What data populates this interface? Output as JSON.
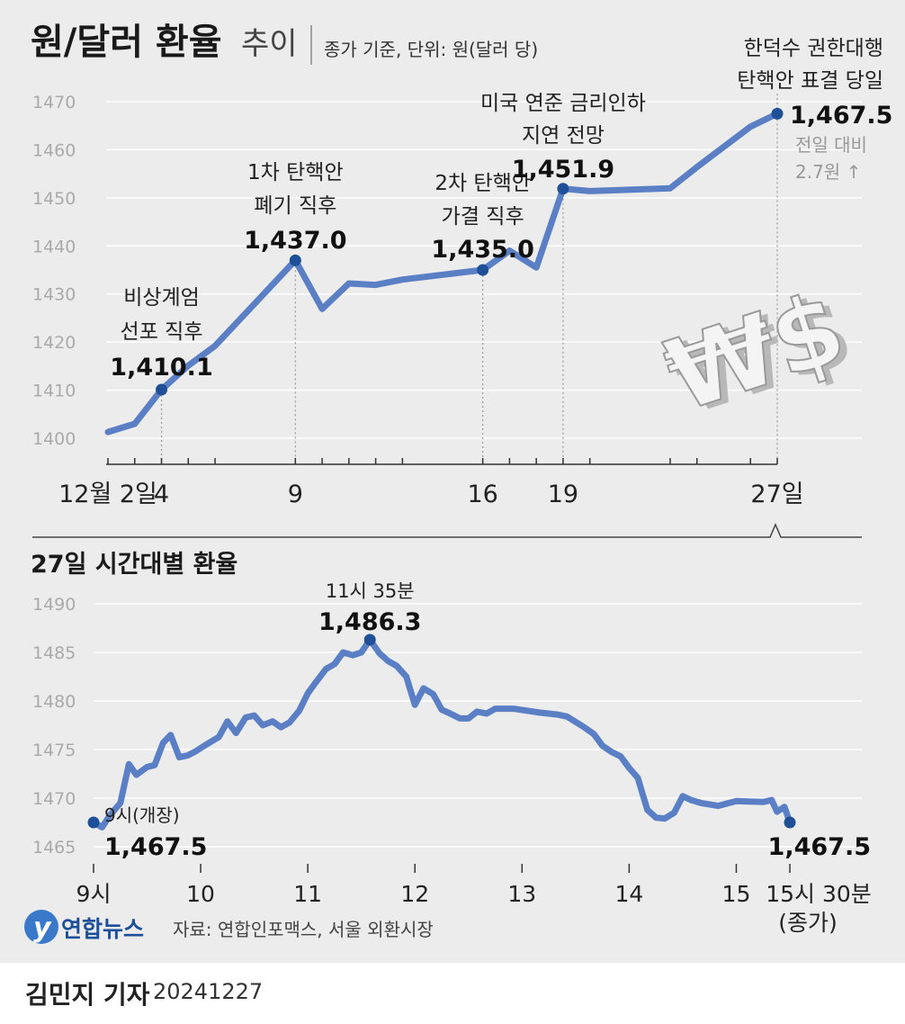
{
  "title": "원/달러 환율",
  "title_suffix": "추이",
  "subtitle": "종가 기준, 단위: 원(달러 당)",
  "logo_text": "연합뉴스",
  "source": "자료: 연합인포맥스, 서울 외환시장",
  "byline": {
    "reporter": "김민지 기자",
    "date": "20241227"
  },
  "colors": {
    "line": "#5b7fc4",
    "marker": "#1f4f96",
    "background": "#ececec",
    "grid": "#ffffff"
  },
  "chart_data": [
    {
      "type": "line",
      "title": "원/달러 환율 추이",
      "ylim": [
        1400,
        1470
      ],
      "yticks": [
        1400,
        1410,
        1420,
        1430,
        1440,
        1450,
        1460,
        1470
      ],
      "x_labels": [
        {
          "day": 2,
          "label": "12월 2일"
        },
        {
          "day": 4,
          "label": "4"
        },
        {
          "day": 9,
          "label": "9"
        },
        {
          "day": 16,
          "label": "16"
        },
        {
          "day": 19,
          "label": "19"
        },
        {
          "day": 27,
          "label": "27일"
        }
      ],
      "points": [
        {
          "day": 2,
          "value": 1401.3
        },
        {
          "day": 3,
          "value": 1403.0
        },
        {
          "day": 4,
          "value": 1410.1
        },
        {
          "day": 5,
          "value": 1415.1
        },
        {
          "day": 6,
          "value": 1419.2
        },
        {
          "day": 9,
          "value": 1437.0
        },
        {
          "day": 10,
          "value": 1426.9
        },
        {
          "day": 11,
          "value": 1432.2
        },
        {
          "day": 12,
          "value": 1431.9
        },
        {
          "day": 13,
          "value": 1433.0
        },
        {
          "day": 16,
          "value": 1435.0
        },
        {
          "day": 17,
          "value": 1439.0
        },
        {
          "day": 18,
          "value": 1435.5
        },
        {
          "day": 19,
          "value": 1451.9
        },
        {
          "day": 20,
          "value": 1451.4
        },
        {
          "day": 23,
          "value": 1452.0
        },
        {
          "day": 24,
          "value": 1456.4
        },
        {
          "day": 26,
          "value": 1464.8
        },
        {
          "day": 27,
          "value": 1467.5
        }
      ],
      "annotations": [
        {
          "day": 4,
          "lines": [
            "비상계엄",
            "선포 직후"
          ],
          "value_label": "1,410.1"
        },
        {
          "day": 9,
          "lines": [
            "1차 탄핵안",
            "폐기 직후"
          ],
          "value_label": "1,437.0"
        },
        {
          "day": 16,
          "lines": [
            "2차 탄핵안",
            "가결 직후"
          ],
          "value_label": "1,435.0"
        },
        {
          "day": 19,
          "lines": [
            "미국 연준 금리인하",
            "지연 전망"
          ],
          "value_label": "1,451.9"
        },
        {
          "day": 27,
          "lines": [
            "한덕수 권한대행",
            "탄핵안 표결 당일"
          ],
          "value_label": "1,467.5",
          "note": [
            "전일 대비",
            "2.7원 ↑"
          ]
        }
      ]
    },
    {
      "type": "line",
      "title": "27일 시간대별 환율",
      "ylim": [
        1465,
        1490
      ],
      "yticks": [
        1465,
        1470,
        1475,
        1480,
        1485,
        1490
      ],
      "x_labels": [
        {
          "hour": 9,
          "label": "9시"
        },
        {
          "hour": 10,
          "label": "10"
        },
        {
          "hour": 11,
          "label": "11"
        },
        {
          "hour": 12,
          "label": "12"
        },
        {
          "hour": 13,
          "label": "13"
        },
        {
          "hour": 14,
          "label": "14"
        },
        {
          "hour": 15,
          "label": "15"
        },
        {
          "hour": 15.5,
          "label": "15시 30분",
          "sub": "(종가)"
        }
      ],
      "points": [
        {
          "hour": 9.0,
          "value": 1467.5
        },
        {
          "hour": 9.08,
          "value": 1467.0
        },
        {
          "hour": 9.15,
          "value": 1468.2
        },
        {
          "hour": 9.25,
          "value": 1469.5
        },
        {
          "hour": 9.33,
          "value": 1473.5
        },
        {
          "hour": 9.4,
          "value": 1472.4
        },
        {
          "hour": 9.5,
          "value": 1473.2
        },
        {
          "hour": 9.57,
          "value": 1473.4
        },
        {
          "hour": 9.65,
          "value": 1475.7
        },
        {
          "hour": 9.72,
          "value": 1476.5
        },
        {
          "hour": 9.8,
          "value": 1474.2
        },
        {
          "hour": 9.88,
          "value": 1474.4
        },
        {
          "hour": 9.95,
          "value": 1474.8
        },
        {
          "hour": 10.05,
          "value": 1475.5
        },
        {
          "hour": 10.17,
          "value": 1476.3
        },
        {
          "hour": 10.25,
          "value": 1477.9
        },
        {
          "hour": 10.33,
          "value": 1476.7
        },
        {
          "hour": 10.42,
          "value": 1478.3
        },
        {
          "hour": 10.5,
          "value": 1478.5
        },
        {
          "hour": 10.58,
          "value": 1477.5
        },
        {
          "hour": 10.67,
          "value": 1477.9
        },
        {
          "hour": 10.75,
          "value": 1477.3
        },
        {
          "hour": 10.83,
          "value": 1477.8
        },
        {
          "hour": 10.92,
          "value": 1479.0
        },
        {
          "hour": 11.0,
          "value": 1480.8
        },
        {
          "hour": 11.08,
          "value": 1482.0
        },
        {
          "hour": 11.17,
          "value": 1483.3
        },
        {
          "hour": 11.25,
          "value": 1483.8
        },
        {
          "hour": 11.33,
          "value": 1485.0
        },
        {
          "hour": 11.42,
          "value": 1484.7
        },
        {
          "hour": 11.5,
          "value": 1485.0
        },
        {
          "hour": 11.58,
          "value": 1486.3
        },
        {
          "hour": 11.67,
          "value": 1484.9
        },
        {
          "hour": 11.75,
          "value": 1484.1
        },
        {
          "hour": 11.83,
          "value": 1483.6
        },
        {
          "hour": 11.92,
          "value": 1482.5
        },
        {
          "hour": 12.0,
          "value": 1479.6
        },
        {
          "hour": 12.08,
          "value": 1481.3
        },
        {
          "hour": 12.17,
          "value": 1480.7
        },
        {
          "hour": 12.25,
          "value": 1479.1
        },
        {
          "hour": 12.33,
          "value": 1478.7
        },
        {
          "hour": 12.42,
          "value": 1478.2
        },
        {
          "hour": 12.5,
          "value": 1478.2
        },
        {
          "hour": 12.58,
          "value": 1478.9
        },
        {
          "hour": 12.67,
          "value": 1478.7
        },
        {
          "hour": 12.75,
          "value": 1479.2
        },
        {
          "hour": 12.92,
          "value": 1479.2
        },
        {
          "hour": 13.17,
          "value": 1478.8
        },
        {
          "hour": 13.33,
          "value": 1478.6
        },
        {
          "hour": 13.42,
          "value": 1478.4
        },
        {
          "hour": 13.58,
          "value": 1477.3
        },
        {
          "hour": 13.67,
          "value": 1476.6
        },
        {
          "hour": 13.75,
          "value": 1475.4
        },
        {
          "hour": 13.83,
          "value": 1474.8
        },
        {
          "hour": 13.92,
          "value": 1474.3
        },
        {
          "hour": 14.0,
          "value": 1473.1
        },
        {
          "hour": 14.08,
          "value": 1472.1
        },
        {
          "hour": 14.17,
          "value": 1468.8
        },
        {
          "hour": 14.25,
          "value": 1468.0
        },
        {
          "hour": 14.33,
          "value": 1467.9
        },
        {
          "hour": 14.42,
          "value": 1468.5
        },
        {
          "hour": 14.5,
          "value": 1470.2
        },
        {
          "hour": 14.58,
          "value": 1469.8
        },
        {
          "hour": 14.67,
          "value": 1469.5
        },
        {
          "hour": 14.83,
          "value": 1469.2
        },
        {
          "hour": 15.0,
          "value": 1469.7
        },
        {
          "hour": 15.25,
          "value": 1469.6
        },
        {
          "hour": 15.33,
          "value": 1469.8
        },
        {
          "hour": 15.38,
          "value": 1468.6
        },
        {
          "hour": 15.45,
          "value": 1469.1
        },
        {
          "hour": 15.5,
          "value": 1467.5
        }
      ],
      "annotations": [
        {
          "hour": 9.0,
          "lines": [
            "9시(개장)"
          ],
          "value_label": "1,467.5"
        },
        {
          "hour": 11.58,
          "lines": [
            "11시 35분"
          ],
          "value_label": "1,486.3"
        },
        {
          "hour": 15.5,
          "lines": [],
          "value_label": "1,467.5"
        }
      ]
    }
  ]
}
